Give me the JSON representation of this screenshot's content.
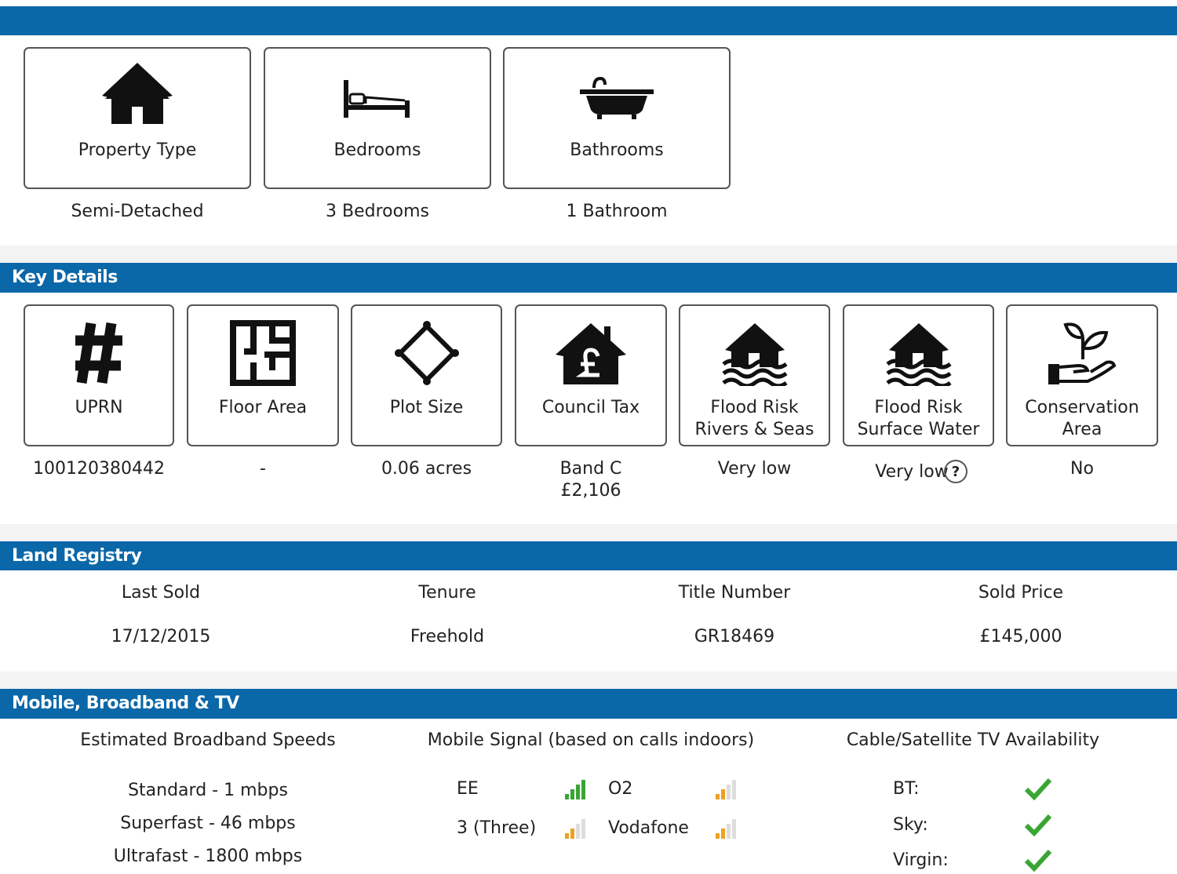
{
  "summary": [
    {
      "label": "Property Type",
      "value": "Semi-Detached"
    },
    {
      "label": "Bedrooms",
      "value": "3 Bedrooms"
    },
    {
      "label": "Bathrooms",
      "value": "1 Bathroom"
    }
  ],
  "key_details": {
    "title": "Key Details",
    "items": [
      {
        "label": [
          "UPRN"
        ],
        "value": [
          "100120380442"
        ]
      },
      {
        "label": [
          "Floor Area"
        ],
        "value": [
          "-"
        ]
      },
      {
        "label": [
          "Plot Size"
        ],
        "value": [
          "0.06 acres"
        ]
      },
      {
        "label": [
          "Council Tax"
        ],
        "value": [
          "Band C",
          "£2,106"
        ]
      },
      {
        "label": [
          "Flood Risk",
          "Rivers & Seas"
        ],
        "value": [
          "Very low"
        ]
      },
      {
        "label": [
          "Flood Risk",
          "Surface Water"
        ],
        "value": [
          "Very low"
        ],
        "help": "?"
      },
      {
        "label": [
          "Conservation",
          "Area"
        ],
        "value": [
          "No"
        ]
      }
    ]
  },
  "land_registry": {
    "title": "Land Registry",
    "columns": [
      {
        "label": "Last Sold",
        "value": "17/12/2015"
      },
      {
        "label": "Tenure",
        "value": "Freehold"
      },
      {
        "label": "Title Number",
        "value": "GR18469"
      },
      {
        "label": "Sold Price",
        "value": "£145,000"
      }
    ]
  },
  "connectivity": {
    "title": "Mobile, Broadband & TV",
    "broadband": {
      "title": "Estimated Broadband Speeds",
      "lines": [
        "Standard - 1 mbps",
        "Superfast - 46 mbps",
        "Ultrafast - 1800 mbps"
      ]
    },
    "mobile": {
      "title": "Mobile Signal (based on calls indoors)",
      "operators": [
        "EE",
        "O2",
        "3 (Three)",
        "Vodafone"
      ]
    },
    "tv": {
      "title": "Cable/Satellite TV Availability",
      "providers": [
        "BT:",
        "Sky:",
        "Virgin:"
      ]
    }
  }
}
